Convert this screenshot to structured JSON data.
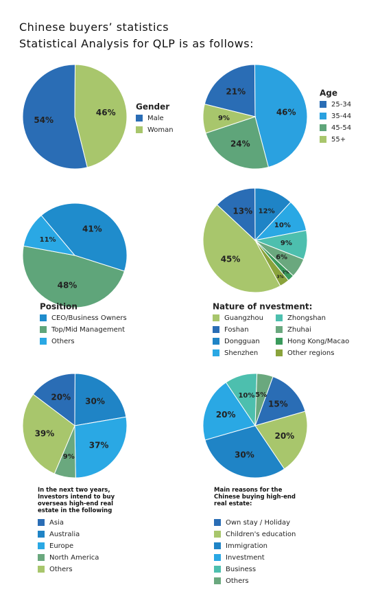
{
  "header": {
    "title": "Chinese buyers’ statistics",
    "subtitle": "Statistical Analysis for  QLP is as follows:"
  },
  "chart_data": [
    {
      "type": "pie",
      "legend_title": "Gender",
      "categories": [
        "Male",
        "Woman"
      ],
      "values": [
        54,
        46
      ],
      "value_labels": [
        "54%",
        "46%"
      ],
      "colors": [
        "#2a6db5",
        "#a8c66c"
      ]
    },
    {
      "type": "pie",
      "legend_title": "Age",
      "categories": [
        "25-34",
        "35-44",
        "45-54",
        "55+"
      ],
      "values": [
        21,
        46,
        24,
        9
      ],
      "value_labels": [
        "21%",
        "46%",
        "24%",
        "9%"
      ],
      "colors": [
        "#2a6db5",
        "#2aa1e0",
        "#5fa57a",
        "#a8c66c"
      ]
    },
    {
      "type": "pie",
      "legend_title": "Position",
      "categories": [
        "CEO/Business Owners",
        "Top/Mid Management",
        "Others"
      ],
      "values": [
        41,
        48,
        11
      ],
      "value_labels": [
        "41%",
        "48%",
        "11%"
      ],
      "colors": [
        "#1f8ccc",
        "#5fa57a",
        "#2aa8e4"
      ]
    },
    {
      "type": "pie",
      "legend_title": "Nature of nvestment:",
      "categories": [
        "Guangzhou",
        "Foshan",
        "Dongguan",
        "Shenzhen",
        "Zhongshan",
        "Zhuhai",
        "Hong Kong/Macao",
        "Other regions"
      ],
      "values": [
        45,
        13,
        12,
        10,
        9,
        6,
        2,
        3
      ],
      "value_labels": [
        "45%",
        "13%",
        "12%",
        "10%",
        "9%",
        "6%",
        "2%",
        "3%"
      ],
      "colors": [
        "#a8c66c",
        "#2a6db5",
        "#1f84c6",
        "#2aa8e4",
        "#4dbfae",
        "#6aa87e",
        "#3a9a5c",
        "#8aa33c"
      ]
    },
    {
      "type": "pie",
      "legend_title": "In the next two years, Investors intend to buy overseas high-end real estate in the following locations:",
      "categories": [
        "Asia",
        "Australia",
        "Europe",
        "North America",
        "Others"
      ],
      "values": [
        20,
        30,
        37,
        9,
        39
      ],
      "value_labels": [
        "20%",
        "30%",
        "37%",
        "9%",
        "39%"
      ],
      "colors": [
        "#2a6db5",
        "#1f84c6",
        "#2aa8e4",
        "#6aa87e",
        "#a8c66c"
      ]
    },
    {
      "type": "pie",
      "legend_title": "Main reasons for the Chinese buying high-end real estate:",
      "categories": [
        "Own stay / Holiday",
        "Children's education",
        "Immigration",
        "Investment",
        "Business",
        "Others"
      ],
      "values": [
        15,
        20,
        30,
        20,
        10,
        5
      ],
      "value_labels": [
        "15%",
        "20%",
        "30%",
        "20%",
        "10%",
        "5%"
      ],
      "colors": [
        "#2a6db5",
        "#a8c66c",
        "#1f84c6",
        "#2aa8e4",
        "#4dbfae",
        "#6aa87e"
      ]
    }
  ]
}
